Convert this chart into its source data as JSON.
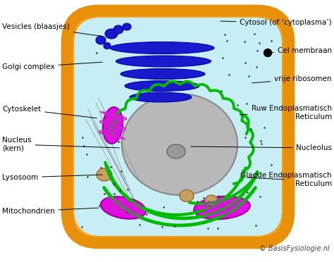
{
  "background_color": "#ffffff",
  "cell_membrane_color": "#f5a623",
  "cell_interior_color": "#c8eef5",
  "cell_border_color": "#e8900a",
  "nucleus_color": "#b8b8b8",
  "nucleus_border_color": "#888888",
  "nucleolus_color": "#999999",
  "golgi_color": "#1a1acc",
  "rER_color": "#00bb00",
  "sER_color": "#00bb00",
  "mitochondria_outer": "#ee00ee",
  "mitochondria_inner": "#dd44dd",
  "lysosome_color": "#c8a060",
  "vesicle_color": "#1a1acc",
  "ribosome_color": "#333333",
  "cytoskeleton_color": "#888888",
  "label_color": "#000000",
  "ann_color": "#000000",
  "copyright_text": "© BasisFysiologie.nl",
  "labels": {
    "vesicles": "Vesicles (blaasjes)",
    "golgi": "Golgi complex",
    "cytoskelet": "Cytoskelet",
    "nucleus": "Nucleus\n(kern)",
    "lysosoom": "Lysosoom",
    "mitochondrien": "Mitochondrien",
    "cytosol": "Cytosol (of ‘cytoplasma’)",
    "cel_membraan": "Cel membraan",
    "vrije_ribosomen": "vrije ribosomen",
    "ruw_ER": "Ruw Endoplasmatisch\nReticulum",
    "nucleolus": "Nucleolus",
    "gladde_ER": "Gladde Endoplasmatisch\nReticulum"
  }
}
